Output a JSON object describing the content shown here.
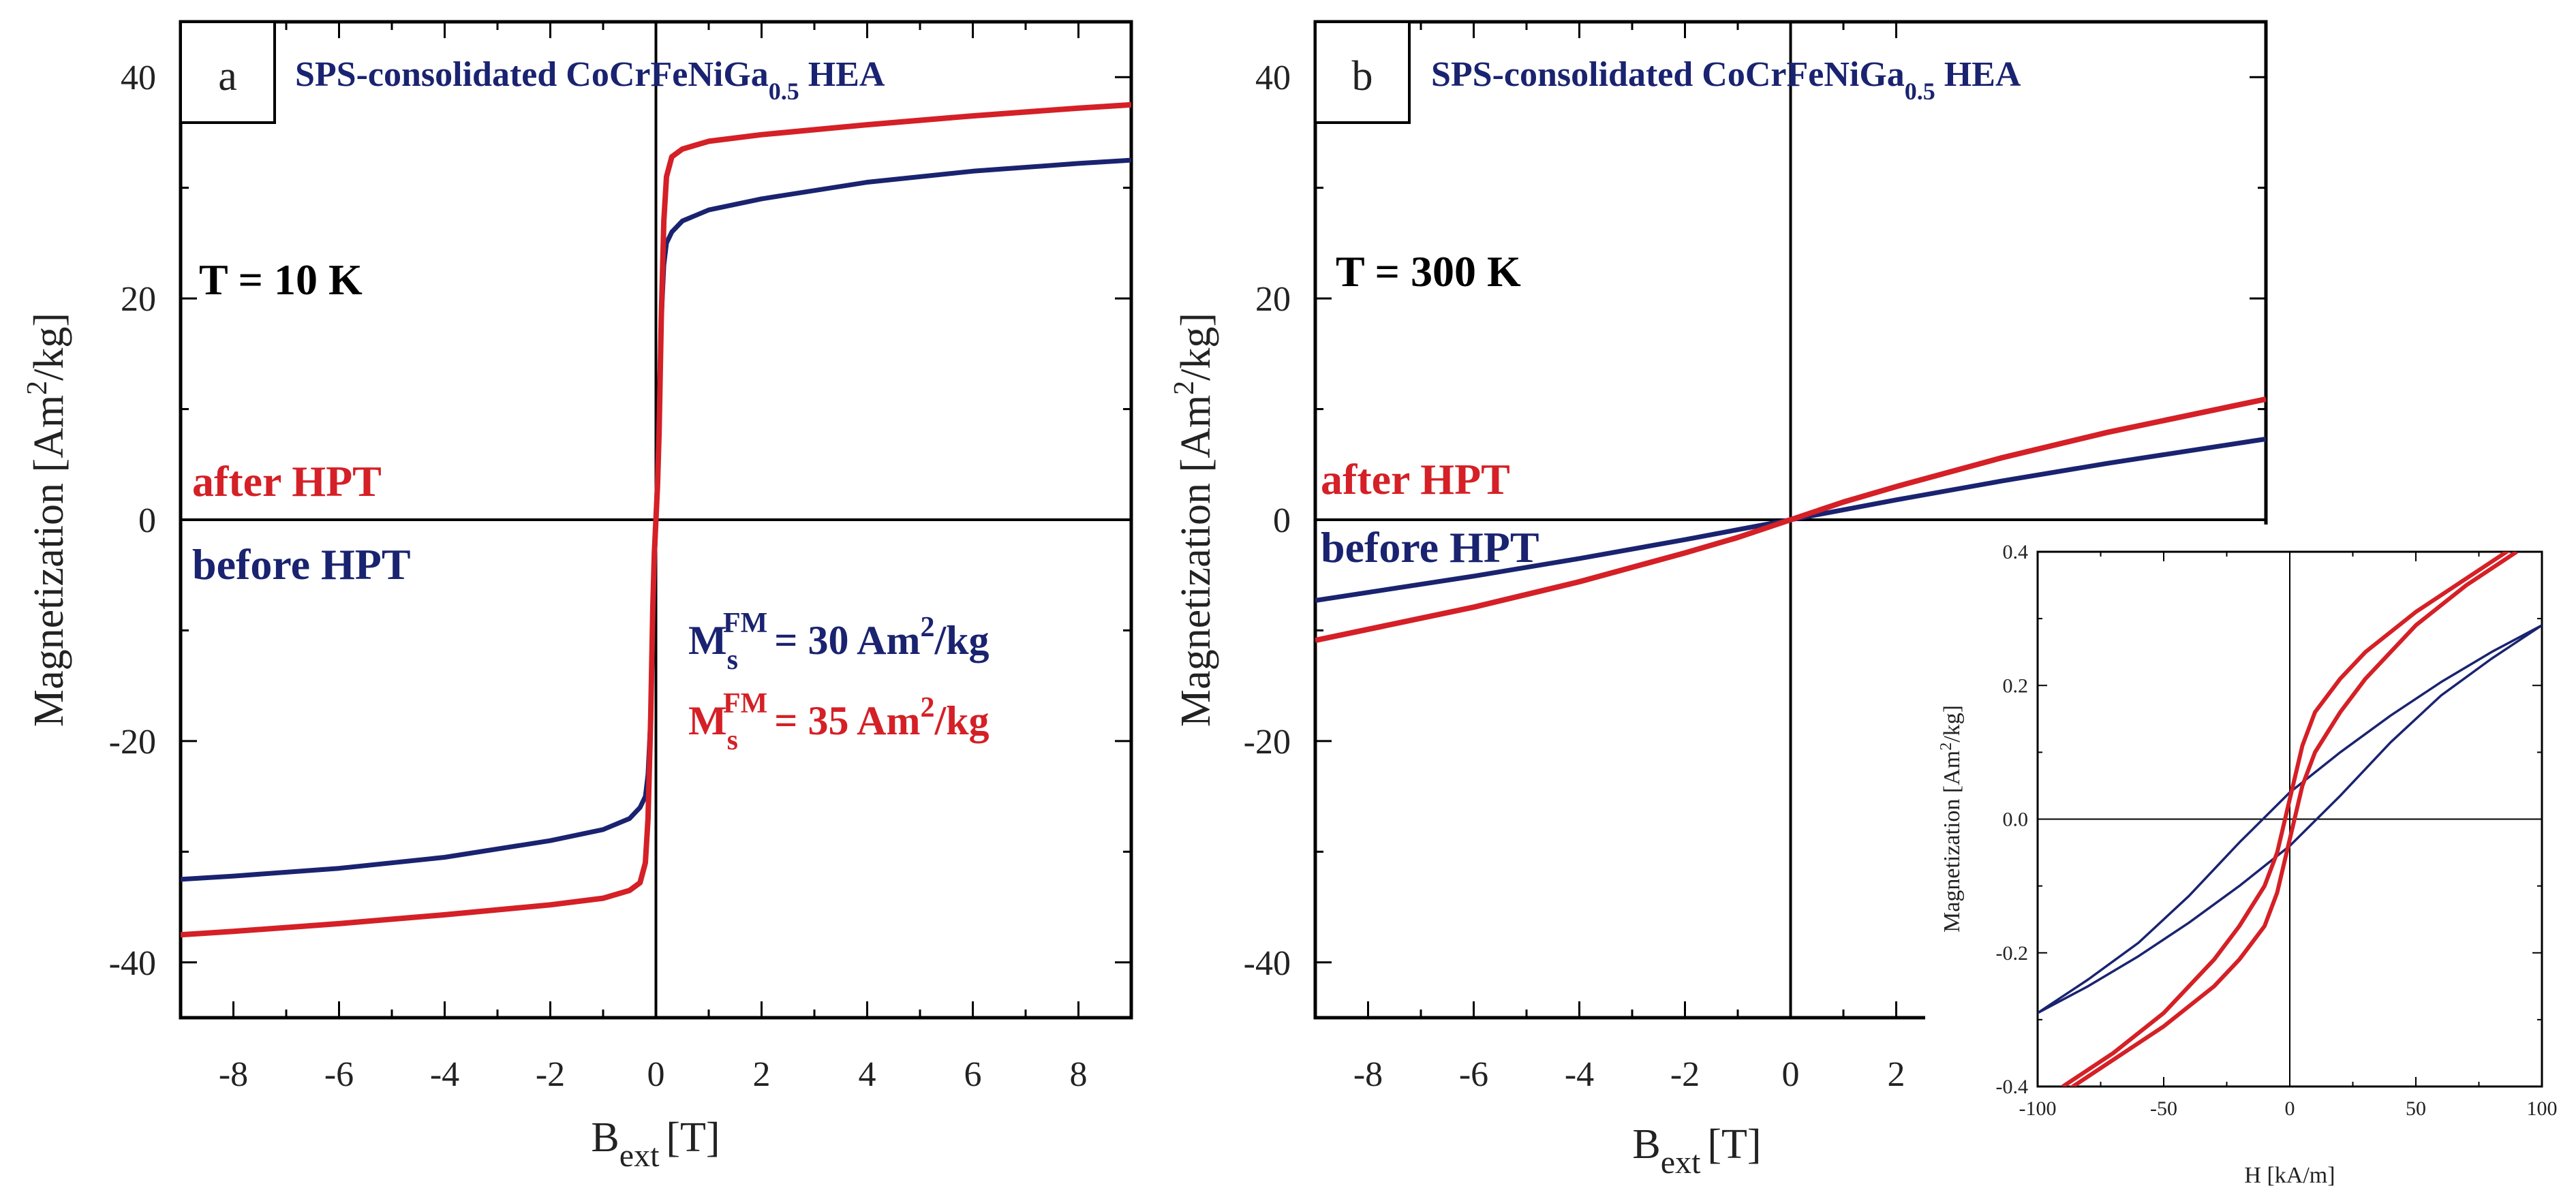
{
  "colors": {
    "before": "#1a2370",
    "after": "#d42026",
    "axis": "#000000",
    "title": "#1a2370"
  },
  "chart_data": [
    {
      "type": "line",
      "panel_label": "a",
      "title_prefix": "SPS-consolidated",
      "title_compound": "CoCrFeNiGa",
      "title_subscript": "0.5",
      "title_suffix": "HEA",
      "xlabel": "B",
      "xlabel_sub": "ext",
      "xlabel_unit": "[T]",
      "ylabel_prefix": "Magnetization [Am",
      "ylabel_sup": "2",
      "ylabel_suffix": "/kg]",
      "xlim": [
        -9,
        9
      ],
      "ylim": [
        -45,
        45
      ],
      "xticks": [
        -8,
        -6,
        -4,
        -2,
        0,
        2,
        4,
        6,
        8
      ],
      "yticks": [
        -40,
        -20,
        0,
        20,
        40
      ],
      "temperature": "T = 10 K",
      "label_after": "after HPT",
      "label_before": "before HPT",
      "ms_before": {
        "symbol": "M",
        "sub": "s",
        "sup": "FM",
        "value": "= 30 Am",
        "unit_sup": "2",
        "unit_suffix": "/kg"
      },
      "ms_after": {
        "symbol": "M",
        "sub": "s",
        "sup": "FM",
        "value": "= 35 Am",
        "unit_sup": "2",
        "unit_suffix": "/kg"
      },
      "series": [
        {
          "name": "before HPT",
          "x": [
            -9,
            -8,
            -6,
            -4,
            -2,
            -1,
            -0.5,
            -0.3,
            -0.2,
            -0.15,
            -0.1,
            -0.06,
            -0.03,
            0,
            0.03,
            0.06,
            0.1,
            0.15,
            0.2,
            0.3,
            0.5,
            1,
            2,
            4,
            6,
            8,
            9
          ],
          "y": [
            -32.5,
            -32.2,
            -31.5,
            -30.5,
            -29,
            -28,
            -27,
            -26,
            -25,
            -23,
            -18,
            -10,
            -4,
            0,
            4,
            10,
            18,
            23,
            25,
            26,
            27,
            28,
            29,
            30.5,
            31.5,
            32.2,
            32.5
          ]
        },
        {
          "name": "after HPT",
          "x": [
            -9,
            -8,
            -6,
            -4,
            -2,
            -1,
            -0.5,
            -0.3,
            -0.2,
            -0.15,
            -0.1,
            -0.06,
            -0.03,
            0,
            0.03,
            0.06,
            0.1,
            0.15,
            0.2,
            0.3,
            0.5,
            1,
            2,
            4,
            6,
            8,
            9
          ],
          "y": [
            -37.5,
            -37.2,
            -36.5,
            -35.7,
            -34.8,
            -34.2,
            -33.5,
            -32.8,
            -31,
            -27,
            -18,
            -8,
            -3,
            0,
            3,
            8,
            18,
            27,
            31,
            32.8,
            33.5,
            34.2,
            34.8,
            35.7,
            36.5,
            37.2,
            37.5
          ]
        }
      ]
    },
    {
      "type": "line",
      "panel_label": "b",
      "title_prefix": "SPS-consolidated",
      "title_compound": "CoCrFeNiGa",
      "title_subscript": "0.5",
      "title_suffix": "HEA",
      "xlabel": "B",
      "xlabel_sub": "ext",
      "xlabel_unit": "[T]",
      "ylabel_prefix": "Magnetization [Am",
      "ylabel_sup": "2",
      "ylabel_suffix": "/kg]",
      "xlim": [
        -9,
        9
      ],
      "ylim": [
        -45,
        45
      ],
      "xticks": [
        -8,
        -6,
        -4,
        -2,
        0,
        2
      ],
      "yticks": [
        -40,
        -20,
        0,
        20,
        40
      ],
      "temperature": "T = 300 K",
      "label_after": "after HPT",
      "label_before": "before HPT",
      "series": [
        {
          "name": "before HPT",
          "x": [
            -9,
            -6,
            -4,
            -2,
            -1,
            0,
            1,
            2,
            4,
            6,
            9
          ],
          "y": [
            -7.3,
            -5.1,
            -3.5,
            -1.8,
            -0.9,
            0,
            0.9,
            1.8,
            3.5,
            5.1,
            7.3
          ]
        },
        {
          "name": "after HPT",
          "x": [
            -9,
            -6,
            -4,
            -2,
            -1,
            0,
            1,
            2,
            4,
            6,
            9
          ],
          "y": [
            -10.9,
            -7.9,
            -5.6,
            -3.0,
            -1.6,
            0,
            1.6,
            3.0,
            5.6,
            7.9,
            10.9
          ]
        }
      ]
    },
    {
      "type": "line",
      "panel_label": "inset",
      "xlabel": "H [kA/m]",
      "ylabel_prefix": "Magnetization [Am",
      "ylabel_sup": "2",
      "ylabel_suffix": "/kg]",
      "xlim": [
        -100,
        100
      ],
      "ylim": [
        -0.4,
        0.4
      ],
      "xticks": [
        -100,
        -50,
        0,
        50,
        100
      ],
      "yticks": [
        -0.4,
        -0.2,
        0.0,
        0.2,
        0.4
      ],
      "ytick_labels": [
        "-0.4",
        "-0.2",
        "0.0",
        "0.2",
        "0.4"
      ],
      "series": [
        {
          "name": "before HPT (branch 1)",
          "x": [
            -100,
            -80,
            -60,
            -40,
            -20,
            0,
            20,
            40,
            60,
            80,
            100
          ],
          "y": [
            -0.29,
            -0.24,
            -0.185,
            -0.115,
            -0.035,
            0.04,
            0.1,
            0.155,
            0.205,
            0.25,
            0.29
          ]
        },
        {
          "name": "before HPT (branch 2)",
          "x": [
            -100,
            -80,
            -60,
            -40,
            -20,
            0,
            20,
            40,
            60,
            80,
            100
          ],
          "y": [
            -0.29,
            -0.25,
            -0.205,
            -0.155,
            -0.1,
            -0.04,
            0.035,
            0.115,
            0.185,
            0.24,
            0.29
          ]
        },
        {
          "name": "after HPT (branch 1)",
          "x": [
            -90,
            -70,
            -50,
            -30,
            -20,
            -10,
            -5,
            0,
            5,
            10,
            20,
            30,
            50,
            70,
            90
          ],
          "y": [
            -0.4,
            -0.35,
            -0.29,
            -0.21,
            -0.16,
            -0.1,
            -0.05,
            0.03,
            0.11,
            0.16,
            0.21,
            0.25,
            0.31,
            0.36,
            0.41
          ]
        },
        {
          "name": "after HPT (branch 2)",
          "x": [
            -90,
            -70,
            -50,
            -30,
            -20,
            -10,
            -5,
            0,
            5,
            10,
            20,
            30,
            50,
            70,
            90
          ],
          "y": [
            -0.41,
            -0.36,
            -0.31,
            -0.25,
            -0.21,
            -0.16,
            -0.11,
            -0.03,
            0.05,
            0.1,
            0.16,
            0.21,
            0.29,
            0.35,
            0.4
          ]
        }
      ]
    }
  ]
}
